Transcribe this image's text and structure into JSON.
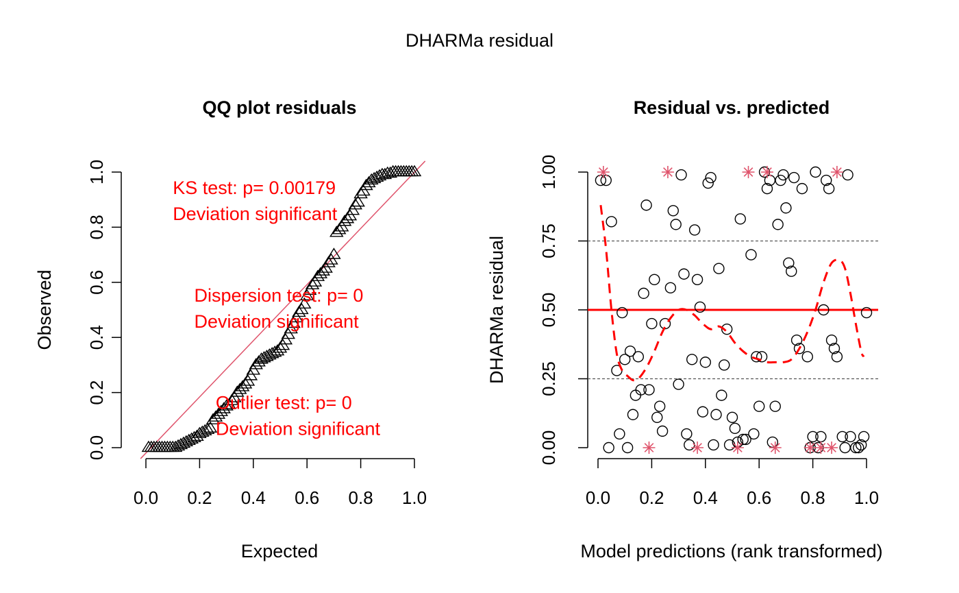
{
  "figure_title": "DHARMa residual",
  "colors": {
    "axis": "#000000",
    "annotation": "#ff0000",
    "refline": "#df536b",
    "asterisk": "#df536b",
    "fit": "#ff0000",
    "quantile_guide": "#555555"
  },
  "chart_data": [
    {
      "type": "scatter",
      "title": "QQ plot residuals",
      "xlabel": "Expected",
      "ylabel": "Observed",
      "xlim": [
        0,
        1
      ],
      "ylim": [
        0,
        1
      ],
      "xticks": [
        "0.0",
        "0.2",
        "0.4",
        "0.6",
        "0.8",
        "1.0"
      ],
      "yticks": [
        "0.0",
        "0.2",
        "0.4",
        "0.6",
        "0.8",
        "1.0"
      ],
      "marker": "triangle",
      "reference_line": "y = x",
      "annotations": [
        {
          "lines": [
            "KS test: p= 0.00179",
            "Deviation  significant"
          ],
          "x": 0.1,
          "y": 0.92
        },
        {
          "lines": [
            "Dispersion test: p= 0",
            "Deviation  significant"
          ],
          "x": 0.18,
          "y": 0.53
        },
        {
          "lines": [
            "Outlier test: p= 0",
            "Deviation  significant"
          ],
          "x": 0.26,
          "y": 0.14
        }
      ],
      "series": [
        {
          "x": [
            0.01,
            0.02,
            0.03,
            0.04,
            0.05,
            0.06,
            0.07,
            0.08,
            0.09,
            0.1,
            0.11,
            0.12,
            0.13,
            0.14,
            0.15,
            0.16,
            0.17,
            0.18,
            0.19,
            0.2,
            0.21,
            0.22,
            0.23,
            0.24,
            0.25,
            0.26,
            0.27,
            0.28,
            0.29,
            0.3,
            0.31,
            0.32,
            0.33,
            0.34,
            0.35,
            0.36,
            0.37,
            0.38,
            0.39,
            0.4,
            0.41,
            0.42,
            0.43,
            0.44,
            0.45,
            0.46,
            0.47,
            0.48,
            0.49,
            0.5,
            0.51,
            0.52,
            0.53,
            0.54,
            0.55,
            0.56,
            0.57,
            0.58,
            0.59,
            0.6,
            0.61,
            0.62,
            0.63,
            0.64,
            0.65,
            0.66,
            0.67,
            0.68,
            0.69,
            0.7,
            0.71,
            0.72,
            0.73,
            0.74,
            0.75,
            0.76,
            0.77,
            0.78,
            0.79,
            0.8,
            0.81,
            0.82,
            0.83,
            0.84,
            0.85,
            0.86,
            0.87,
            0.88,
            0.89,
            0.9,
            0.91,
            0.92,
            0.93,
            0.94,
            0.95,
            0.96,
            0.97,
            0.98,
            0.99,
            1.0
          ],
          "y": [
            0.0,
            0.0,
            0.0,
            0.0,
            0.0,
            0.0,
            0.0,
            0.0,
            0.0,
            0.0,
            0.0,
            0.005,
            0.01,
            0.015,
            0.02,
            0.025,
            0.03,
            0.035,
            0.04,
            0.05,
            0.055,
            0.06,
            0.065,
            0.07,
            0.1,
            0.11,
            0.12,
            0.13,
            0.14,
            0.15,
            0.155,
            0.17,
            0.18,
            0.2,
            0.21,
            0.22,
            0.23,
            0.24,
            0.26,
            0.28,
            0.3,
            0.31,
            0.32,
            0.325,
            0.33,
            0.335,
            0.34,
            0.345,
            0.35,
            0.36,
            0.37,
            0.39,
            0.41,
            0.43,
            0.45,
            0.47,
            0.49,
            0.5,
            0.52,
            0.55,
            0.57,
            0.59,
            0.6,
            0.62,
            0.63,
            0.64,
            0.65,
            0.67,
            0.68,
            0.7,
            0.78,
            0.79,
            0.8,
            0.82,
            0.83,
            0.84,
            0.86,
            0.88,
            0.89,
            0.92,
            0.93,
            0.95,
            0.96,
            0.97,
            0.975,
            0.98,
            0.985,
            0.99,
            0.99,
            0.995,
            0.995,
            1.0,
            1.0,
            1.0,
            1.0,
            1.0,
            1.0,
            1.0,
            1.0,
            1.0
          ]
        }
      ]
    },
    {
      "type": "scatter",
      "title": "Residual vs. predicted",
      "xlabel": "Model predictions (rank transformed)",
      "ylabel": "DHARMa residual",
      "xlim": [
        0,
        1
      ],
      "ylim": [
        0,
        1
      ],
      "xticks": [
        "0.0",
        "0.2",
        "0.4",
        "0.6",
        "0.8",
        "1.0"
      ],
      "yticks": [
        "0.00",
        "0.25",
        "0.50",
        "0.75",
        "1.00"
      ],
      "quantile_guides": [
        0.25,
        0.75
      ],
      "median_line": 0.5,
      "series": [
        {
          "name": "residuals",
          "marker": "circle",
          "x": [
            0.01,
            0.03,
            0.04,
            0.05,
            0.07,
            0.08,
            0.09,
            0.1,
            0.11,
            0.12,
            0.13,
            0.14,
            0.15,
            0.16,
            0.17,
            0.18,
            0.19,
            0.2,
            0.21,
            0.22,
            0.23,
            0.24,
            0.25,
            0.27,
            0.28,
            0.29,
            0.3,
            0.31,
            0.32,
            0.33,
            0.34,
            0.35,
            0.36,
            0.37,
            0.38,
            0.39,
            0.4,
            0.41,
            0.42,
            0.43,
            0.44,
            0.45,
            0.46,
            0.47,
            0.48,
            0.49,
            0.5,
            0.51,
            0.52,
            0.53,
            0.54,
            0.55,
            0.57,
            0.58,
            0.59,
            0.6,
            0.61,
            0.62,
            0.63,
            0.64,
            0.65,
            0.66,
            0.67,
            0.68,
            0.69,
            0.7,
            0.71,
            0.72,
            0.73,
            0.74,
            0.75,
            0.76,
            0.78,
            0.79,
            0.8,
            0.81,
            0.82,
            0.83,
            0.84,
            0.85,
            0.86,
            0.87,
            0.88,
            0.89,
            0.91,
            0.92,
            0.93,
            0.94,
            0.96,
            0.97,
            0.98,
            0.99,
            1.0
          ],
          "y": [
            0.97,
            0.97,
            0.0,
            0.82,
            0.28,
            0.05,
            0.49,
            0.32,
            0.0,
            0.35,
            0.12,
            0.19,
            0.33,
            0.21,
            0.56,
            0.88,
            0.21,
            0.45,
            0.61,
            0.11,
            0.15,
            0.06,
            0.45,
            0.58,
            0.86,
            0.81,
            0.23,
            0.99,
            0.63,
            0.05,
            0.01,
            0.32,
            0.79,
            0.61,
            0.51,
            0.13,
            0.31,
            0.96,
            0.98,
            0.01,
            0.12,
            0.65,
            0.19,
            0.3,
            0.43,
            0.01,
            0.11,
            0.07,
            0.02,
            0.83,
            0.03,
            0.03,
            0.7,
            0.05,
            0.33,
            0.15,
            0.33,
            1.0,
            0.94,
            0.97,
            0.02,
            0.15,
            0.81,
            0.97,
            0.99,
            0.87,
            0.67,
            0.64,
            0.98,
            0.39,
            0.36,
            0.94,
            0.33,
            0.0,
            0.04,
            1.0,
            0.0,
            0.04,
            0.5,
            0.97,
            0.94,
            0.39,
            0.36,
            0.33,
            0.04,
            0.0,
            0.99,
            0.04,
            0.0,
            0.0,
            0.01,
            0.04,
            0.49
          ]
        },
        {
          "name": "outliers",
          "marker": "asterisk",
          "x": [
            0.02,
            0.19,
            0.26,
            0.37,
            0.52,
            0.56,
            0.63,
            0.66,
            0.79,
            0.83,
            0.87,
            0.89
          ],
          "y": [
            1,
            0,
            1,
            0,
            0,
            1,
            1,
            0,
            0,
            0,
            0,
            1
          ]
        },
        {
          "name": "quantile_fit",
          "marker": "dashed-line",
          "x": [
            0.01,
            0.03,
            0.05,
            0.07,
            0.09,
            0.11,
            0.13,
            0.15,
            0.18,
            0.21,
            0.24,
            0.27,
            0.3,
            0.33,
            0.36,
            0.39,
            0.42,
            0.45,
            0.48,
            0.51,
            0.54,
            0.57,
            0.6,
            0.63,
            0.66,
            0.69,
            0.72,
            0.75,
            0.78,
            0.81,
            0.84,
            0.87,
            0.9,
            0.92,
            0.94,
            0.96,
            0.98,
            0.99
          ],
          "y": [
            0.88,
            0.72,
            0.5,
            0.34,
            0.28,
            0.26,
            0.245,
            0.25,
            0.29,
            0.35,
            0.42,
            0.47,
            0.5,
            0.5,
            0.48,
            0.45,
            0.43,
            0.44,
            0.42,
            0.38,
            0.35,
            0.33,
            0.32,
            0.31,
            0.31,
            0.31,
            0.32,
            0.36,
            0.42,
            0.5,
            0.6,
            0.67,
            0.68,
            0.65,
            0.56,
            0.45,
            0.35,
            0.33
          ]
        }
      ]
    }
  ]
}
